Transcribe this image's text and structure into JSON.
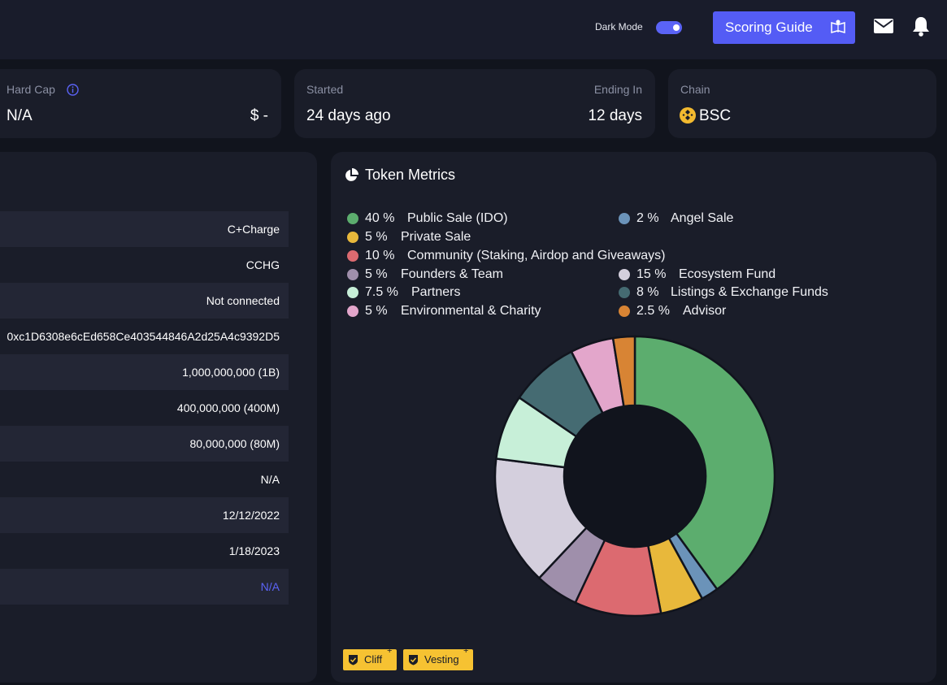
{
  "header": {
    "dark_mode_label": "Dark Mode",
    "dark_mode_on": true,
    "scoring_guide_label": "Scoring Guide",
    "accent_color": "#545cf5"
  },
  "cards": {
    "hard_cap": {
      "label": "Hard Cap",
      "value": "N/A",
      "usd": "$ -"
    },
    "timing": {
      "started_label": "Started",
      "started_value": "24 days ago",
      "ending_label": "Ending In",
      "ending_value": "12 days"
    },
    "chain": {
      "label": "Chain",
      "value": "BSC"
    }
  },
  "details": {
    "rows": [
      "C+Charge",
      "CCHG",
      "Not connected",
      "0xc1D6308e6cEd658Ce403544846A2d25A4c9392D5",
      "1,000,000,000 (1B)",
      "400,000,000 (400M)",
      "80,000,000 (80M)",
      "N/A",
      "12/12/2022",
      "1/18/2023",
      "N/A"
    ]
  },
  "token_metrics": {
    "title": "Token Metrics",
    "legend": [
      {
        "pct": "40 %",
        "name": "Public Sale (IDO)",
        "color": "#5cad6e"
      },
      {
        "pct": "2 %",
        "name": "Angel Sale",
        "color": "#6b93b9"
      },
      {
        "pct": "5 %",
        "name": "Private Sale",
        "color": "#e8b83b"
      },
      {
        "pct": "10 %",
        "name": "Community (Staking, Airdop and Giveaways)",
        "color": "#dc6a70"
      },
      {
        "pct": "5 %",
        "name": "Founders & Team",
        "color": "#9f8fab"
      },
      {
        "pct": "15 %",
        "name": "Ecosystem Fund",
        "color": "#d4cfdd"
      },
      {
        "pct": "7.5 %",
        "name": "Partners",
        "color": "#c7efd8"
      },
      {
        "pct": "8 %",
        "name": "Listings & Exchange Funds",
        "color": "#456b72"
      },
      {
        "pct": "5 %",
        "name": "Environmental & Charity",
        "color": "#e3a6cb"
      },
      {
        "pct": "2.5 %",
        "name": "Advisor",
        "color": "#d88434"
      }
    ],
    "tags": [
      "Cliff",
      "Vesting"
    ],
    "tag_plus": "+"
  },
  "chart_data": {
    "type": "pie",
    "categories": [
      "Public Sale (IDO)",
      "Angel Sale",
      "Private Sale",
      "Community (Staking, Airdop and Giveaways)",
      "Founders & Team",
      "Ecosystem Fund",
      "Partners",
      "Listings & Exchange Funds",
      "Environmental & Charity",
      "Advisor"
    ],
    "values": [
      40,
      2,
      5,
      10,
      5,
      15,
      7.5,
      8,
      5,
      2.5
    ],
    "colors": [
      "#5cad6e",
      "#6b93b9",
      "#e8b83b",
      "#dc6a70",
      "#9f8fab",
      "#d4cfdd",
      "#c7efd8",
      "#456b72",
      "#e3a6cb",
      "#d88434"
    ],
    "donut": true
  }
}
